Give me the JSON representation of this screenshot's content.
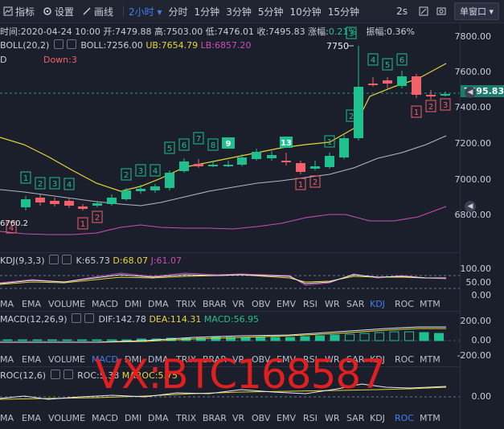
{
  "toolbar": {
    "indicator_label": "指标",
    "settings_label": "设置",
    "draw_label": "画线",
    "active_timeframe": "2小时",
    "timeframes": [
      "分时",
      "1分钟",
      "3分钟",
      "5分钟",
      "10分钟",
      "15分钟"
    ],
    "refresh_interval": "2s",
    "window_mode": "单窗口"
  },
  "main_chart": {
    "ohlc_line": {
      "time": "时间:2020-04-24 10:00",
      "open": "开:7479.88",
      "high": "高:7503.00",
      "low": "低:7476.01",
      "close": "收:7495.83",
      "change_label": "涨幅:",
      "change_value": "0.21%",
      "amplitude": "振幅:0.36%"
    },
    "boll_line": {
      "name": "BOLL(20,2)",
      "boll": "BOLL:7256.00",
      "ub": "UB:7654.79",
      "lb": "LB:6857.20"
    },
    "td_line": {
      "name": "D",
      "down": "Down:3"
    },
    "y_axis": [
      "7800.00",
      "7600.00",
      "7400.00",
      "7200.00",
      "7000.00",
      "6800.00"
    ],
    "current_price": "7495.83",
    "high_marker": "7750",
    "low_marker": "6760.2",
    "colors": {
      "up": "#1fc08e",
      "down": "#f0616a",
      "boll_mid": "#b0b6c3",
      "boll_ub": "#e6d53a",
      "boll_lb": "#c84fb5"
    }
  },
  "kdj": {
    "name": "KDJ(9,3,3)",
    "k": "K:65.73",
    "d": "D:68.07",
    "j": "J:61.07",
    "y_axis": [
      "100.00",
      "50.00",
      "0.00"
    ]
  },
  "macd": {
    "name": "MACD(12,26,9)",
    "dif": "DIF:142.78",
    "dea": "DEA:114.31",
    "macd": "MACD:56.95",
    "y_axis": [
      "200.00",
      "0.00",
      "-200.00"
    ]
  },
  "roc": {
    "name": "ROC(12,6)",
    "roc": "ROC:5.38",
    "maroc": "MAROC:5.75",
    "y_axis": [
      "0.00"
    ]
  },
  "nav_main": [
    "MA",
    "EMA",
    "VOLUME",
    "MACD",
    "DMI",
    "DMA",
    "TRIX",
    "BRAR",
    "VR",
    "OBV",
    "EMV",
    "RSI",
    "WR",
    "SAR",
    "KDJ",
    "ROC",
    "MTM"
  ],
  "nav_active_1": "KDJ",
  "nav_active_2": "MACD",
  "nav_active_3": "ROC",
  "watermark": "VX:BTC168587"
}
